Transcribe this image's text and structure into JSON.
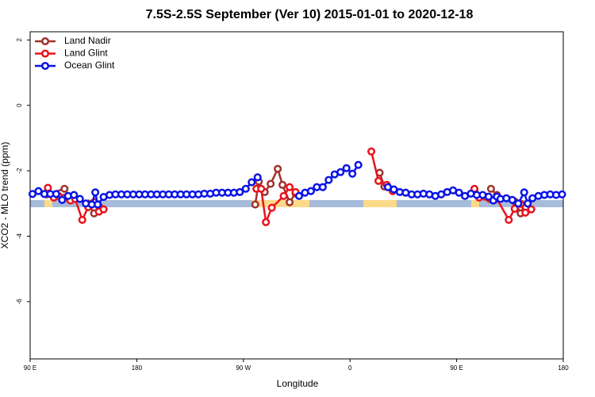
{
  "chart_data": {
    "type": "line",
    "title": "7.5S-2.5S September (Ver 10)   2015-01-01 to 2020-12-18",
    "xlabel": "Longitude",
    "ylabel": "XCO2 - MLO trend (ppm)",
    "xlim": [
      90,
      540
    ],
    "ylim": [
      -7.75,
      2.25
    ],
    "xticks": [
      {
        "value": 90,
        "label": "90 E"
      },
      180,
      {
        "value": 270,
        "label": "90 W"
      },
      {
        "value": 360,
        "label": "0"
      },
      {
        "value": 450,
        "label": "90 E"
      },
      {
        "value": 540,
        "label": "180"
      }
    ],
    "yticks": [
      -6,
      -4,
      -2,
      0,
      2
    ],
    "legend": "top-left",
    "series": [
      {
        "name": "Land Nadir",
        "color": "#a0322d",
        "x": [
          104,
          119,
          124,
          null,
          139,
          144,
          148,
          null,
          280,
          283,
          288,
          293,
          299,
          303,
          309,
          314,
          null,
          385,
          389,
          null,
          465,
          null,
          479,
          484,
          null,
          499,
          504,
          508
        ],
        "values": [
          -2.72,
          -2.55,
          -2.86,
          null,
          -3.0,
          -3.3,
          -3.08,
          null,
          -3.03,
          -2.33,
          -2.65,
          -2.4,
          -1.94,
          -2.43,
          -2.96,
          -2.69,
          null,
          -2.06,
          -2.48,
          null,
          -2.62,
          null,
          -2.55,
          -2.74,
          null,
          -2.94,
          -3.3,
          -3.13
        ]
      },
      {
        "name": "Land Glint",
        "color": "#e8141b",
        "x": [
          105,
          110,
          114,
          119,
          124,
          128,
          134,
          139,
          144,
          148,
          152,
          null,
          281,
          285,
          289,
          294,
          304,
          309,
          314,
          null,
          378,
          384,
          391,
          396,
          null,
          465,
          469,
          474,
          478,
          484,
          494,
          499,
          504,
          508,
          513
        ],
        "values": [
          -2.52,
          -2.82,
          -2.77,
          -2.82,
          -2.91,
          -2.86,
          -3.5,
          -3.11,
          -2.96,
          -3.25,
          -3.18,
          null,
          -2.55,
          -2.55,
          -3.57,
          -3.13,
          -2.77,
          -2.5,
          -2.65,
          null,
          -1.41,
          -2.31,
          -2.43,
          -2.62,
          null,
          -2.55,
          -2.82,
          -2.79,
          -2.86,
          -2.86,
          -3.5,
          -3.16,
          -3.01,
          -3.28,
          -3.18
        ]
      },
      {
        "name": "Ocean Glint",
        "color": "#0a14e6",
        "x": [
          92,
          97,
          102,
          107,
          112,
          117,
          122,
          127,
          132,
          137,
          142,
          145,
          147,
          152,
          157,
          162,
          167,
          172,
          177,
          182,
          187,
          192,
          197,
          202,
          207,
          212,
          217,
          222,
          227,
          232,
          237,
          242,
          247,
          252,
          257,
          262,
          267,
          272,
          277,
          282,
          null,
          317,
          322,
          327,
          332,
          337,
          342,
          347,
          352,
          357,
          362,
          367,
          null,
          392,
          397,
          402,
          407,
          412,
          417,
          422,
          427,
          432,
          437,
          442,
          447,
          452,
          457,
          462,
          467,
          472,
          477,
          481,
          484,
          487,
          492,
          497,
          502,
          507,
          510,
          514,
          519,
          524,
          529,
          534,
          539
        ],
        "values": [
          -2.71,
          -2.62,
          -2.71,
          -2.71,
          -2.71,
          -2.89,
          -2.77,
          -2.74,
          -2.86,
          -3.0,
          -3.03,
          -2.66,
          -3.03,
          -2.8,
          -2.74,
          -2.72,
          -2.72,
          -2.72,
          -2.72,
          -2.72,
          -2.72,
          -2.72,
          -2.72,
          -2.72,
          -2.72,
          -2.72,
          -2.72,
          -2.72,
          -2.72,
          -2.72,
          -2.7,
          -2.7,
          -2.67,
          -2.67,
          -2.67,
          -2.67,
          -2.65,
          -2.55,
          -2.35,
          -2.2,
          null,
          -2.77,
          -2.67,
          -2.62,
          -2.5,
          -2.5,
          -2.28,
          -2.11,
          -2.04,
          -1.92,
          -2.09,
          -1.82,
          null,
          -2.5,
          -2.57,
          -2.65,
          -2.67,
          -2.72,
          -2.72,
          -2.7,
          -2.72,
          -2.77,
          -2.72,
          -2.65,
          -2.6,
          -2.67,
          -2.77,
          -2.7,
          -2.74,
          -2.74,
          -2.79,
          -2.91,
          -2.79,
          -2.86,
          -2.84,
          -2.89,
          -3.0,
          -2.66,
          -3.0,
          -2.84,
          -2.77,
          -2.74,
          -2.72,
          -2.74,
          -2.72
        ]
      }
    ]
  }
}
